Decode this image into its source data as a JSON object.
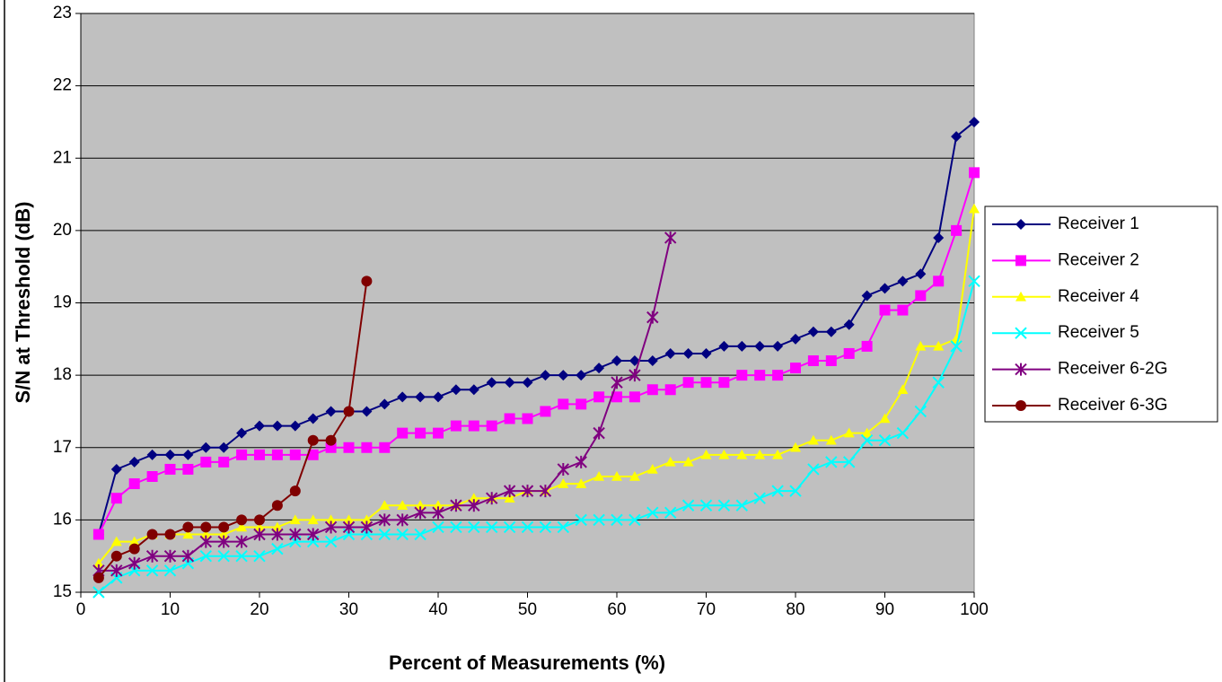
{
  "chart_data": {
    "type": "line",
    "x_label": "Percent of Measurements (%)",
    "y_label": "S/N at Threshold (dB)",
    "x": [
      2,
      4,
      6,
      8,
      10,
      12,
      14,
      16,
      18,
      20,
      22,
      24,
      26,
      28,
      30,
      32,
      34,
      36,
      38,
      40,
      42,
      44,
      46,
      48,
      50,
      52,
      54,
      56,
      58,
      60,
      62,
      64,
      66,
      68,
      70,
      72,
      74,
      76,
      78,
      80,
      82,
      84,
      86,
      88,
      90,
      92,
      94,
      96,
      98,
      100
    ],
    "series": [
      {
        "name": "Receiver 1",
        "color": "#000080",
        "marker": "diamond",
        "values": [
          15.8,
          16.7,
          16.8,
          16.9,
          16.9,
          16.9,
          17.0,
          17.0,
          17.2,
          17.3,
          17.3,
          17.3,
          17.4,
          17.5,
          17.5,
          17.5,
          17.6,
          17.7,
          17.7,
          17.7,
          17.8,
          17.8,
          17.9,
          17.9,
          17.9,
          18.0,
          18.0,
          18.0,
          18.1,
          18.2,
          18.2,
          18.2,
          18.3,
          18.3,
          18.3,
          18.4,
          18.4,
          18.4,
          18.4,
          18.5,
          18.6,
          18.6,
          18.7,
          19.1,
          19.2,
          19.3,
          19.4,
          19.9,
          21.3,
          21.5
        ]
      },
      {
        "name": "Receiver 2",
        "color": "#ff00ff",
        "marker": "square",
        "values": [
          15.8,
          16.3,
          16.5,
          16.6,
          16.7,
          16.7,
          16.8,
          16.8,
          16.9,
          16.9,
          16.9,
          16.9,
          16.9,
          17.0,
          17.0,
          17.0,
          17.0,
          17.2,
          17.2,
          17.2,
          17.3,
          17.3,
          17.3,
          17.4,
          17.4,
          17.5,
          17.6,
          17.6,
          17.7,
          17.7,
          17.7,
          17.8,
          17.8,
          17.9,
          17.9,
          17.9,
          18.0,
          18.0,
          18.0,
          18.1,
          18.2,
          18.2,
          18.3,
          18.4,
          18.9,
          18.9,
          19.1,
          19.3,
          20.0,
          20.8
        ]
      },
      {
        "name": "Receiver 4",
        "color": "#ffff00",
        "marker": "triangle",
        "values": [
          15.4,
          15.7,
          15.7,
          15.8,
          15.8,
          15.8,
          15.8,
          15.8,
          15.9,
          15.9,
          15.9,
          16.0,
          16.0,
          16.0,
          16.0,
          16.0,
          16.2,
          16.2,
          16.2,
          16.2,
          16.2,
          16.3,
          16.3,
          16.3,
          16.4,
          16.4,
          16.5,
          16.5,
          16.6,
          16.6,
          16.6,
          16.7,
          16.8,
          16.8,
          16.9,
          16.9,
          16.9,
          16.9,
          16.9,
          17.0,
          17.1,
          17.1,
          17.2,
          17.2,
          17.4,
          17.8,
          18.4,
          18.4,
          18.5,
          20.3
        ]
      },
      {
        "name": "Receiver 5",
        "color": "#00ffff",
        "marker": "x",
        "values": [
          15.0,
          15.2,
          15.3,
          15.3,
          15.3,
          15.4,
          15.5,
          15.5,
          15.5,
          15.5,
          15.6,
          15.7,
          15.7,
          15.7,
          15.8,
          15.8,
          15.8,
          15.8,
          15.8,
          15.9,
          15.9,
          15.9,
          15.9,
          15.9,
          15.9,
          15.9,
          15.9,
          16.0,
          16.0,
          16.0,
          16.0,
          16.1,
          16.1,
          16.2,
          16.2,
          16.2,
          16.2,
          16.3,
          16.4,
          16.4,
          16.7,
          16.8,
          16.8,
          17.1,
          17.1,
          17.2,
          17.5,
          17.9,
          18.4,
          19.3
        ]
      },
      {
        "name": "Receiver 6-2G",
        "color": "#800080",
        "marker": "star",
        "values": [
          15.3,
          15.3,
          15.4,
          15.5,
          15.5,
          15.5,
          15.7,
          15.7,
          15.7,
          15.8,
          15.8,
          15.8,
          15.8,
          15.9,
          15.9,
          15.9,
          16.0,
          16.0,
          16.1,
          16.1,
          16.2,
          16.2,
          16.3,
          16.4,
          16.4,
          16.4,
          16.7,
          16.8,
          17.2,
          17.9,
          18.0,
          18.8,
          19.9,
          null,
          null,
          null,
          null,
          null,
          null,
          null,
          null,
          null,
          null,
          null,
          null,
          null,
          null,
          null,
          null,
          null
        ]
      },
      {
        "name": "Receiver 6-3G",
        "color": "#800000",
        "marker": "circle",
        "values": [
          15.2,
          15.5,
          15.6,
          15.8,
          15.8,
          15.9,
          15.9,
          15.9,
          16.0,
          16.0,
          16.2,
          16.4,
          17.1,
          17.1,
          17.5,
          19.3,
          null,
          null,
          null,
          null,
          null,
          null,
          null,
          null,
          null,
          null,
          null,
          null,
          null,
          null,
          null,
          null,
          null,
          null,
          null,
          null,
          null,
          null,
          null,
          null,
          null,
          null,
          null,
          null,
          null,
          null,
          null,
          null,
          null,
          null
        ]
      }
    ],
    "xlim": [
      0,
      100
    ],
    "xticks": [
      0,
      10,
      20,
      30,
      40,
      50,
      60,
      70,
      80,
      90,
      100
    ],
    "ylim": [
      15,
      23
    ],
    "yticks": [
      15,
      16,
      17,
      18,
      19,
      20,
      21,
      22,
      23
    ],
    "grid": true,
    "legend": "right"
  }
}
